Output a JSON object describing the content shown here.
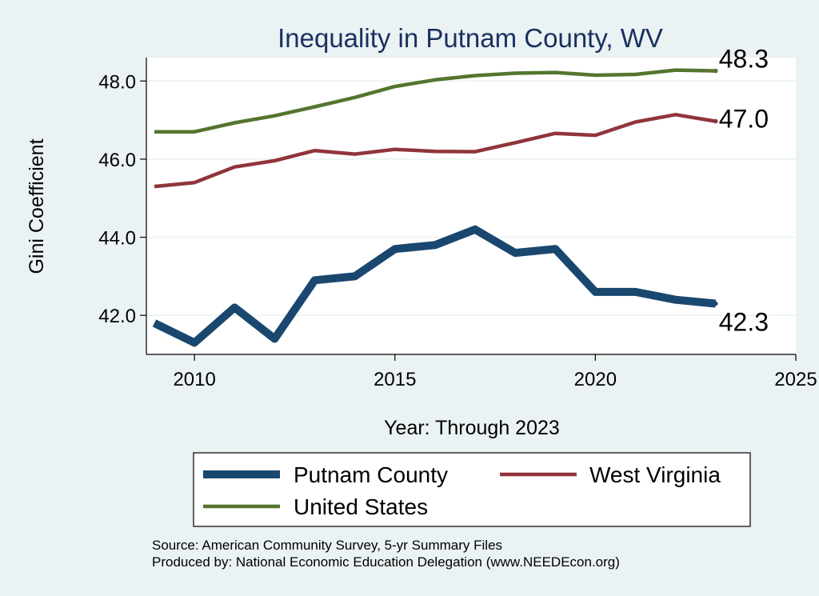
{
  "chart_data": {
    "type": "line",
    "title": "Inequality in Putnam County, WV",
    "xlabel": "Year: Through 2023",
    "ylabel": "Gini Coefficient",
    "xlim": [
      2008.8,
      2025
    ],
    "ylim": [
      41.0,
      48.6
    ],
    "xticks": [
      2010,
      2015,
      2020,
      2025
    ],
    "xtick_labels": [
      "2010",
      "2015",
      "2020",
      "2025"
    ],
    "yticks": [
      42,
      44,
      46,
      48
    ],
    "ytick_labels": [
      "42.0",
      "44.0",
      "46.0",
      "48.0"
    ],
    "grid": true,
    "x": [
      2009,
      2010,
      2011,
      2012,
      2013,
      2014,
      2015,
      2016,
      2017,
      2018,
      2019,
      2020,
      2021,
      2022,
      2023
    ],
    "series": [
      {
        "name": "Putnam County",
        "color": "#1a476f",
        "values": [
          41.8,
          41.3,
          42.2,
          41.4,
          42.9,
          43.0,
          43.7,
          43.8,
          44.2,
          43.6,
          43.7,
          42.6,
          42.6,
          42.4,
          42.3
        ],
        "end_label": "42.3"
      },
      {
        "name": "West Virginia",
        "color": "#90353b",
        "values": [
          45.3,
          45.4,
          45.8,
          45.96,
          46.22,
          46.13,
          46.25,
          46.2,
          46.19,
          46.42,
          46.66,
          46.61,
          46.95,
          47.14,
          46.97
        ],
        "end_label": "47.0"
      },
      {
        "name": "United States",
        "color": "#55752f",
        "values": [
          46.7,
          46.7,
          46.93,
          47.11,
          47.34,
          47.58,
          47.86,
          48.03,
          48.14,
          48.2,
          48.22,
          48.15,
          48.17,
          48.28,
          48.26
        ],
        "end_label": "48.3"
      }
    ],
    "legend_position": "bottom",
    "notes": [
      "Source: American Community Survey, 5-yr Summary Files",
      "Produced by: National Economic Education Delegation (www.NEEDEcon.org)"
    ]
  }
}
